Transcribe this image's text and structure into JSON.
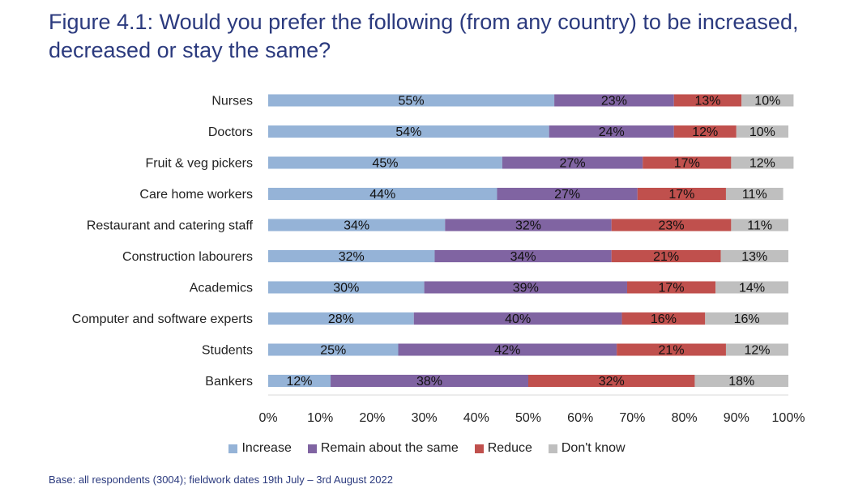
{
  "title": "Figure 4.1: Would you prefer the following (from any country) to be increased, decreased or stay the same?",
  "footnote": "Base: all respondents (3004); fieldwork dates 19th July – 3rd August 2022",
  "colors": {
    "increase": "#95b3d7",
    "remain": "#8064a2",
    "reduce": "#c0504d",
    "dont_know": "#bfbfbf"
  },
  "chart_data": {
    "type": "bar",
    "orientation": "horizontal",
    "stacked": true,
    "categories": [
      "Nurses",
      "Doctors",
      "Fruit & veg pickers",
      "Care home workers",
      "Restaurant and catering staff",
      "Construction labourers",
      "Academics",
      "Computer and software experts",
      "Students",
      "Bankers"
    ],
    "series": [
      {
        "name": "Increase",
        "values": [
          55,
          54,
          45,
          44,
          34,
          32,
          30,
          28,
          25,
          12
        ]
      },
      {
        "name": "Remain about the same",
        "values": [
          23,
          24,
          27,
          27,
          32,
          34,
          39,
          40,
          42,
          38
        ]
      },
      {
        "name": "Reduce",
        "values": [
          13,
          12,
          17,
          17,
          23,
          21,
          17,
          16,
          21,
          32
        ]
      },
      {
        "name": "Don't know",
        "values": [
          10,
          10,
          12,
          11,
          11,
          13,
          14,
          16,
          12,
          18
        ]
      }
    ],
    "xlim": [
      0,
      100
    ],
    "xticks": [
      "0%",
      "10%",
      "20%",
      "30%",
      "40%",
      "50%",
      "60%",
      "70%",
      "80%",
      "90%",
      "100%"
    ],
    "value_suffix": "%",
    "legend_position": "bottom"
  }
}
